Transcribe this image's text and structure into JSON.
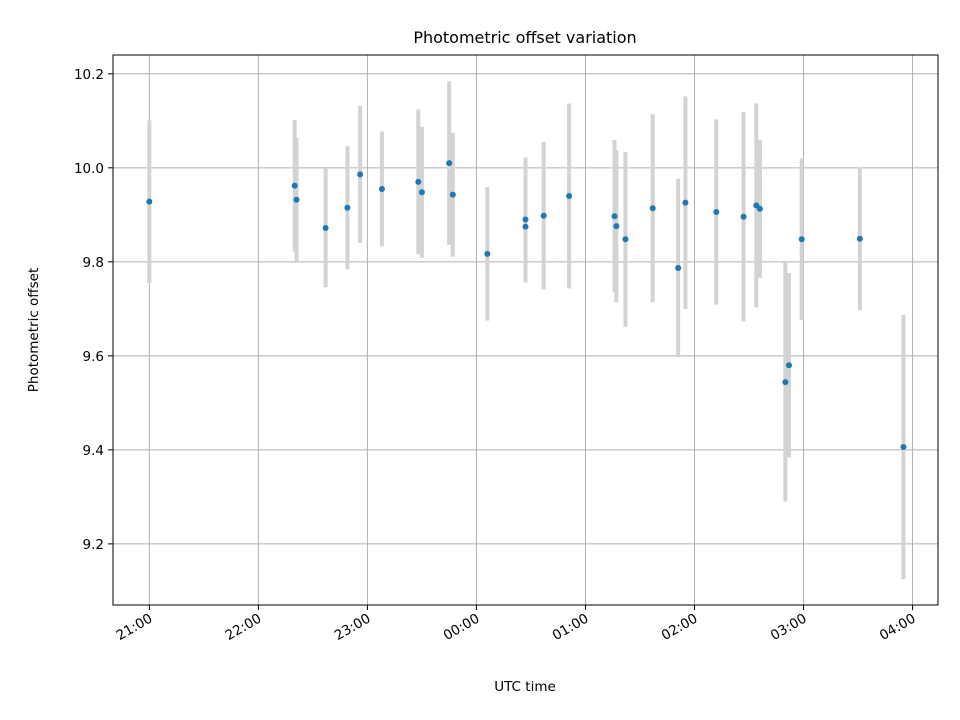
{
  "chart_data": {
    "type": "scatter",
    "title": "Photometric offset variation",
    "xlabel": "UTC time",
    "ylabel": "Photometric offset",
    "x_format": "HH:MM (UTC)",
    "xlim": [
      "2020-01-01T20:40",
      "2020-01-02T04:14"
    ],
    "ylim": [
      9.07,
      10.24
    ],
    "x_ticks": [
      "21:00",
      "22:00",
      "23:00",
      "00:00",
      "01:00",
      "02:00",
      "03:00",
      "04:00"
    ],
    "y_ticks": [
      "9.2",
      "9.4",
      "9.6",
      "9.8",
      "10.0",
      "10.2"
    ],
    "y_tick_values": [
      9.2,
      9.4,
      9.6,
      9.8,
      10.0,
      10.2
    ],
    "grid": true,
    "colors": {
      "marker": "#1f77b4",
      "errorbar": "#d3d3d3",
      "grid": "#b0b0b0"
    },
    "series": [
      {
        "points": [
          {
            "x": "2020-01-01T21:00",
            "y": 9.928,
            "err": 0.173
          },
          {
            "x": "2020-01-01T22:20",
            "y": 9.962,
            "err": 0.14
          },
          {
            "x": "2020-01-01T22:21",
            "y": 9.932,
            "err": 0.132
          },
          {
            "x": "2020-01-01T22:37",
            "y": 9.872,
            "err": 0.126
          },
          {
            "x": "2020-01-01T22:49",
            "y": 9.915,
            "err": 0.131
          },
          {
            "x": "2020-01-01T22:56",
            "y": 9.986,
            "err": 0.146
          },
          {
            "x": "2020-01-01T23:08",
            "y": 9.955,
            "err": 0.122
          },
          {
            "x": "2020-01-01T23:28",
            "y": 9.97,
            "err": 0.154
          },
          {
            "x": "2020-01-01T23:30",
            "y": 9.948,
            "err": 0.139
          },
          {
            "x": "2020-01-01T23:45",
            "y": 10.01,
            "err": 0.174
          },
          {
            "x": "2020-01-01T23:47",
            "y": 9.943,
            "err": 0.132
          },
          {
            "x": "2020-01-02T00:06",
            "y": 9.817,
            "err": 0.142
          },
          {
            "x": "2020-01-02T00:27",
            "y": 9.875,
            "err": 0.119
          },
          {
            "x": "2020-01-02T00:27",
            "y": 9.89,
            "err": 0.132
          },
          {
            "x": "2020-01-02T00:37",
            "y": 9.898,
            "err": 0.157
          },
          {
            "x": "2020-01-02T00:51",
            "y": 9.94,
            "err": 0.197
          },
          {
            "x": "2020-01-02T01:16",
            "y": 9.897,
            "err": 0.162
          },
          {
            "x": "2020-01-02T01:17",
            "y": 9.876,
            "err": 0.162
          },
          {
            "x": "2020-01-02T01:22",
            "y": 9.848,
            "err": 0.186
          },
          {
            "x": "2020-01-02T01:37",
            "y": 9.914,
            "err": 0.2
          },
          {
            "x": "2020-01-02T01:51",
            "y": 9.787,
            "err": 0.19
          },
          {
            "x": "2020-01-02T01:55",
            "y": 9.926,
            "err": 0.226
          },
          {
            "x": "2020-01-02T02:12",
            "y": 9.906,
            "err": 0.197
          },
          {
            "x": "2020-01-02T02:27",
            "y": 9.896,
            "err": 0.223
          },
          {
            "x": "2020-01-02T02:34",
            "y": 9.92,
            "err": 0.217
          },
          {
            "x": "2020-01-02T02:36",
            "y": 9.913,
            "err": 0.147
          },
          {
            "x": "2020-01-02T02:50",
            "y": 9.544,
            "err": 0.254
          },
          {
            "x": "2020-01-02T02:52",
            "y": 9.58,
            "err": 0.196
          },
          {
            "x": "2020-01-02T02:59",
            "y": 9.848,
            "err": 0.172
          },
          {
            "x": "2020-01-02T03:31",
            "y": 9.849,
            "err": 0.152
          },
          {
            "x": "2020-01-02T03:55",
            "y": 9.406,
            "err": 0.281
          }
        ]
      }
    ]
  }
}
